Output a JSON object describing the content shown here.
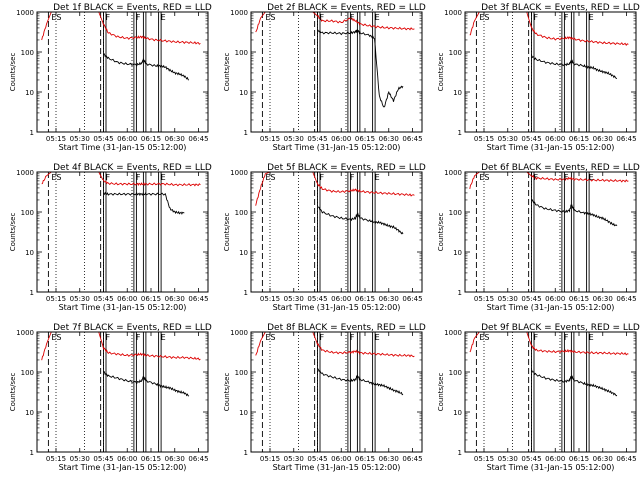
{
  "common": {
    "xlabel": "Start Time (31-Jan-15 05:12:00)",
    "ylabel": "Counts/sec",
    "x_ticks": [
      "05:15",
      "05:30",
      "05:45",
      "06:00",
      "06:15",
      "06:30",
      "06:45"
    ],
    "y_ticks": [
      "1",
      "10",
      "100",
      "1000"
    ],
    "x_range": [
      5.05,
      6.85
    ],
    "y_range": [
      1,
      1000
    ],
    "y_scale": "log",
    "series_colors": {
      "events": "#000000",
      "lld": "#dd0000"
    },
    "dotted_lines_x": [
      5.25,
      5.55,
      5.75,
      6.05
    ],
    "dashed_lines_x": [
      5.17,
      5.72
    ],
    "solid_lines_x": [
      5.75,
      6.07,
      6.17,
      6.33
    ],
    "markers": [
      {
        "label": "ES",
        "x": 5.18
      },
      {
        "label": "F",
        "x": 5.75
      },
      {
        "label": "F",
        "x": 6.07
      },
      {
        "label": "E",
        "x": 6.33
      }
    ]
  },
  "chart_data": [
    {
      "type": "line",
      "title": "Det 1f BLACK = Events, RED = LLD",
      "ylim": [
        1,
        1000
      ],
      "series": [
        {
          "id": "lld",
          "x": [
            5.1,
            5.15,
            5.2,
            5.25,
            5.3,
            5.4,
            5.5,
            5.6,
            5.7,
            5.75,
            5.8,
            5.9,
            6.0,
            6.1,
            6.15,
            6.2,
            6.3,
            6.4,
            6.5,
            6.6,
            6.7,
            6.77
          ],
          "values": [
            200,
            500,
            1000,
            1000,
            1000,
            1000,
            1000,
            1000,
            1000,
            500,
            300,
            240,
            220,
            230,
            240,
            220,
            200,
            190,
            180,
            175,
            170,
            165
          ]
        },
        {
          "id": "events",
          "x": [
            5.75,
            5.8,
            5.9,
            6.0,
            6.1,
            6.15,
            6.17,
            6.2,
            6.3,
            6.35,
            6.4,
            6.45,
            6.5,
            6.55,
            6.6,
            6.65
          ],
          "values": [
            90,
            70,
            55,
            50,
            48,
            52,
            65,
            50,
            45,
            45,
            42,
            35,
            30,
            28,
            25,
            20
          ]
        }
      ]
    },
    {
      "type": "line",
      "title": "Det 2f BLACK = Events, RED = LLD",
      "ylim": [
        1,
        1000
      ],
      "series": [
        {
          "id": "lld",
          "x": [
            5.1,
            5.15,
            5.2,
            5.25,
            5.3,
            5.4,
            5.5,
            5.6,
            5.7,
            5.75,
            5.8,
            5.9,
            6.0,
            6.1,
            6.15,
            6.2,
            6.3,
            6.4,
            6.5,
            6.6,
            6.7,
            6.77
          ],
          "values": [
            300,
            700,
            1000,
            1000,
            1000,
            1000,
            1000,
            1000,
            1000,
            800,
            600,
            600,
            550,
            700,
            600,
            500,
            450,
            420,
            400,
            390,
            380,
            380
          ]
        },
        {
          "id": "events",
          "x": [
            5.75,
            5.8,
            5.9,
            6.0,
            6.1,
            6.15,
            6.17,
            6.2,
            6.3,
            6.35,
            6.4,
            6.45,
            6.5,
            6.55,
            6.6,
            6.65
          ],
          "values": [
            350,
            300,
            300,
            290,
            300,
            320,
            350,
            300,
            260,
            220,
            8,
            4,
            10,
            6,
            12,
            14
          ]
        }
      ]
    },
    {
      "type": "line",
      "title": "Det 3f BLACK = Events, RED = LLD",
      "ylim": [
        1,
        1000
      ],
      "series": [
        {
          "id": "lld",
          "x": [
            5.1,
            5.15,
            5.2,
            5.25,
            5.3,
            5.4,
            5.5,
            5.6,
            5.7,
            5.75,
            5.8,
            5.9,
            6.0,
            6.1,
            6.15,
            6.2,
            6.3,
            6.4,
            6.5,
            6.6,
            6.7,
            6.77
          ],
          "values": [
            250,
            600,
            1000,
            1000,
            1000,
            1000,
            1000,
            1000,
            1000,
            400,
            280,
            230,
            210,
            220,
            230,
            210,
            190,
            180,
            170,
            165,
            160,
            155
          ]
        },
        {
          "id": "events",
          "x": [
            5.75,
            5.8,
            5.9,
            6.0,
            6.1,
            6.15,
            6.17,
            6.2,
            6.3,
            6.35,
            6.4,
            6.45,
            6.5,
            6.55,
            6.6,
            6.65
          ],
          "values": [
            80,
            65,
            55,
            50,
            48,
            50,
            60,
            50,
            45,
            42,
            40,
            35,
            32,
            30,
            26,
            22
          ]
        }
      ]
    },
    {
      "type": "line",
      "title": "Det 4f BLACK = Events, RED = LLD",
      "ylim": [
        1,
        1000
      ],
      "series": [
        {
          "id": "lld",
          "x": [
            5.1,
            5.15,
            5.2,
            5.25,
            5.3,
            5.4,
            5.5,
            5.6,
            5.7,
            5.75,
            5.8,
            5.9,
            6.0,
            6.1,
            6.15,
            6.2,
            6.3,
            6.4,
            6.5,
            6.6,
            6.7,
            6.77
          ],
          "values": [
            500,
            800,
            1000,
            1000,
            1000,
            1000,
            1000,
            1000,
            1000,
            600,
            520,
            500,
            500,
            500,
            500,
            500,
            500,
            500,
            480,
            480,
            480,
            480
          ]
        },
        {
          "id": "events",
          "x": [
            5.75,
            5.8,
            5.9,
            6.0,
            6.1,
            6.15,
            6.2,
            6.3,
            6.4,
            6.45,
            6.5,
            6.55,
            6.6
          ],
          "values": [
            290,
            280,
            280,
            280,
            280,
            280,
            280,
            280,
            280,
            120,
            100,
            95,
            95
          ]
        }
      ]
    },
    {
      "type": "line",
      "title": "Det 5f BLACK = Events, RED = LLD",
      "ylim": [
        1,
        1000
      ],
      "series": [
        {
          "id": "lld",
          "x": [
            5.1,
            5.15,
            5.2,
            5.25,
            5.3,
            5.4,
            5.5,
            5.6,
            5.7,
            5.75,
            5.8,
            5.9,
            6.0,
            6.1,
            6.15,
            6.2,
            6.3,
            6.4,
            6.5,
            6.6,
            6.7,
            6.77
          ],
          "values": [
            150,
            400,
            900,
            1000,
            1000,
            1000,
            1000,
            1000,
            1000,
            500,
            380,
            330,
            320,
            340,
            360,
            330,
            310,
            300,
            290,
            280,
            270,
            260
          ]
        },
        {
          "id": "events",
          "x": [
            5.75,
            5.8,
            5.9,
            6.0,
            6.1,
            6.15,
            6.17,
            6.2,
            6.3,
            6.35,
            6.4,
            6.45,
            6.5,
            6.55,
            6.6,
            6.65
          ],
          "values": [
            140,
            100,
            80,
            70,
            65,
            70,
            90,
            70,
            60,
            55,
            55,
            50,
            45,
            42,
            35,
            28
          ]
        }
      ]
    },
    {
      "type": "line",
      "title": "Det 6f BLACK = Events, RED = LLD",
      "ylim": [
        1,
        1000
      ],
      "series": [
        {
          "id": "lld",
          "x": [
            5.1,
            5.15,
            5.2,
            5.25,
            5.3,
            5.4,
            5.5,
            5.6,
            5.7,
            5.75,
            5.8,
            5.9,
            6.0,
            6.1,
            6.15,
            6.2,
            6.3,
            6.4,
            6.5,
            6.6,
            6.7,
            6.77
          ],
          "values": [
            400,
            800,
            1000,
            1000,
            1000,
            1000,
            1000,
            1000,
            1000,
            800,
            700,
            680,
            650,
            660,
            700,
            660,
            640,
            630,
            620,
            610,
            600,
            600
          ]
        },
        {
          "id": "events",
          "x": [
            5.75,
            5.8,
            5.9,
            6.0,
            6.1,
            6.15,
            6.17,
            6.2,
            6.3,
            6.35,
            6.4,
            6.45,
            6.5,
            6.55,
            6.6,
            6.65
          ],
          "values": [
            200,
            150,
            120,
            110,
            100,
            110,
            150,
            110,
            95,
            90,
            85,
            75,
            70,
            60,
            50,
            45
          ]
        }
      ]
    },
    {
      "type": "line",
      "title": "Det 7f BLACK = Events, RED = LLD",
      "ylim": [
        1,
        1000
      ],
      "series": [
        {
          "id": "lld",
          "x": [
            5.1,
            5.15,
            5.2,
            5.25,
            5.3,
            5.4,
            5.5,
            5.6,
            5.7,
            5.75,
            5.8,
            5.9,
            6.0,
            6.1,
            6.15,
            6.2,
            6.3,
            6.4,
            6.5,
            6.6,
            6.7,
            6.77
          ],
          "values": [
            200,
            500,
            1000,
            1000,
            1000,
            1000,
            1000,
            1000,
            1000,
            400,
            300,
            280,
            260,
            270,
            280,
            260,
            250,
            240,
            230,
            230,
            220,
            210
          ]
        },
        {
          "id": "events",
          "x": [
            5.75,
            5.8,
            5.9,
            6.0,
            6.1,
            6.15,
            6.17,
            6.2,
            6.3,
            6.35,
            6.4,
            6.45,
            6.5,
            6.55,
            6.6,
            6.65
          ],
          "values": [
            100,
            80,
            70,
            60,
            55,
            60,
            75,
            60,
            50,
            45,
            42,
            40,
            35,
            32,
            30,
            25
          ]
        }
      ]
    },
    {
      "type": "line",
      "title": "Det 8f BLACK = Events, RED = LLD",
      "ylim": [
        1,
        1000
      ],
      "series": [
        {
          "id": "lld",
          "x": [
            5.1,
            5.15,
            5.2,
            5.25,
            5.3,
            5.4,
            5.5,
            5.6,
            5.7,
            5.75,
            5.8,
            5.9,
            6.0,
            6.1,
            6.15,
            6.2,
            6.3,
            6.4,
            6.5,
            6.6,
            6.7,
            6.77
          ],
          "values": [
            250,
            600,
            1000,
            1000,
            1000,
            1000,
            1000,
            1000,
            1000,
            500,
            350,
            310,
            300,
            310,
            330,
            300,
            290,
            280,
            270,
            260,
            260,
            250
          ]
        },
        {
          "id": "events",
          "x": [
            5.75,
            5.8,
            5.9,
            6.0,
            6.1,
            6.15,
            6.17,
            6.2,
            6.3,
            6.35,
            6.4,
            6.45,
            6.5,
            6.55,
            6.6,
            6.65
          ],
          "values": [
            120,
            90,
            75,
            65,
            60,
            65,
            80,
            65,
            55,
            50,
            48,
            45,
            40,
            35,
            32,
            28
          ]
        }
      ]
    },
    {
      "type": "line",
      "title": "Det 9f BLACK = Events, RED = LLD",
      "ylim": [
        1,
        1000
      ],
      "series": [
        {
          "id": "lld",
          "x": [
            5.1,
            5.15,
            5.2,
            5.25,
            5.3,
            5.4,
            5.5,
            5.6,
            5.7,
            5.75,
            5.8,
            5.9,
            6.0,
            6.1,
            6.15,
            6.2,
            6.3,
            6.4,
            6.5,
            6.6,
            6.7,
            6.77
          ],
          "values": [
            300,
            700,
            1000,
            1000,
            1000,
            1000,
            1000,
            1000,
            1000,
            450,
            350,
            330,
            320,
            330,
            340,
            320,
            310,
            300,
            300,
            290,
            290,
            280
          ]
        },
        {
          "id": "events",
          "x": [
            5.75,
            5.8,
            5.9,
            6.0,
            6.1,
            6.15,
            6.17,
            6.2,
            6.3,
            6.35,
            6.4,
            6.45,
            6.5,
            6.55,
            6.6,
            6.65
          ],
          "values": [
            110,
            85,
            70,
            62,
            58,
            62,
            78,
            62,
            52,
            48,
            46,
            42,
            38,
            34,
            30,
            26
          ]
        }
      ]
    }
  ]
}
